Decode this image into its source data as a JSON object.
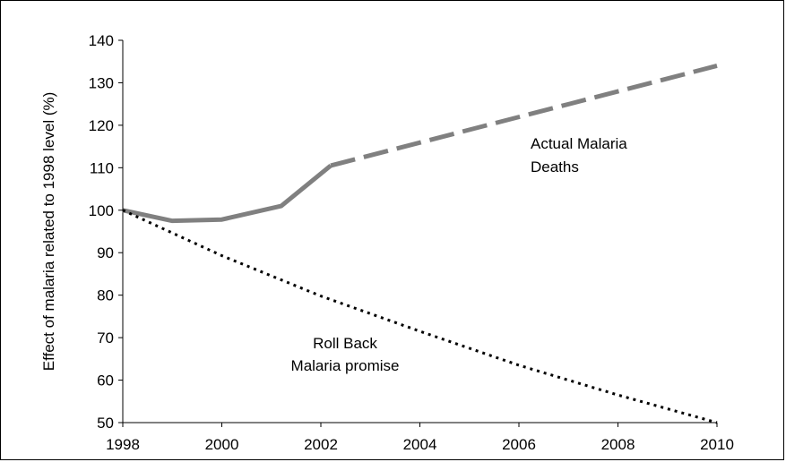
{
  "chart_data": {
    "type": "line",
    "title": "",
    "xlabel": "",
    "ylabel": "Effect of malaria related to 1998 level (%)",
    "xlim": [
      1998,
      2010
    ],
    "ylim": [
      50,
      140
    ],
    "x_ticks": [
      "1998",
      "2000",
      "2002",
      "2004",
      "2006",
      "2008",
      "2010"
    ],
    "y_ticks": [
      "50",
      "60",
      "70",
      "80",
      "90",
      "100",
      "110",
      "120",
      "130",
      "140"
    ],
    "grid": false,
    "series": [
      {
        "name": "Actual Malaria Deaths",
        "color": "#808080",
        "style": "solid-then-dashed",
        "points": [
          {
            "x": 1998,
            "y": 100
          },
          {
            "x": 1999,
            "y": 97.5
          },
          {
            "x": 2000,
            "y": 97.8
          },
          {
            "x": 2001.2,
            "y": 101
          },
          {
            "x": 2002.2,
            "y": 110.5
          },
          {
            "x": 2010,
            "y": 134
          }
        ],
        "solid_until_x": 2002.2
      },
      {
        "name": "Roll Back Malaria promise",
        "color": "#000000",
        "style": "dotted",
        "points": [
          {
            "x": 1998,
            "y": 100
          },
          {
            "x": 2000,
            "y": 89.3
          },
          {
            "x": 2002,
            "y": 79.8
          },
          {
            "x": 2004,
            "y": 71.5
          },
          {
            "x": 2006,
            "y": 63.5
          },
          {
            "x": 2008,
            "y": 56.5
          },
          {
            "x": 2010,
            "y": 50
          }
        ]
      }
    ],
    "annotations": [
      {
        "lines": [
          "Actual Malaria",
          "Deaths"
        ]
      },
      {
        "lines": [
          "Roll Back",
          "Malaria promise"
        ]
      }
    ]
  }
}
